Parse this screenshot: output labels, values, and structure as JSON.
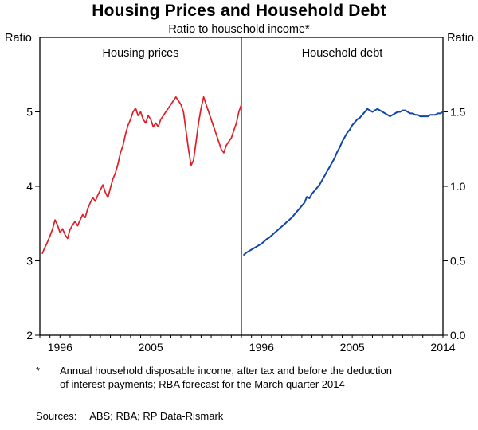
{
  "footnote": {
    "marker": "*",
    "text": "Annual household disposable income, after tax and before the deduction of interest payments; RBA forecast for the March quarter 2014"
  },
  "sources": {
    "label": "Sources:",
    "text": "ABS; RBA; RP Data-Rismark"
  },
  "chart_data": {
    "type": "line",
    "title": "Housing Prices and Household Debt",
    "subtitle": "Ratio to household income*",
    "left_axis": {
      "unit": "Ratio",
      "min": 2,
      "max": 6,
      "tick_values": [
        2,
        3,
        4,
        5
      ],
      "tick_labels": [
        "2",
        "3",
        "4",
        "5"
      ]
    },
    "right_axis": {
      "unit": "Ratio",
      "min": 0,
      "max": 2,
      "tick_values": [
        0,
        0.5,
        1,
        1.5
      ],
      "tick_labels": [
        "0.0",
        "0.5",
        "1.0",
        "1.5"
      ]
    },
    "x_axis": {
      "range": [
        1994,
        2014
      ],
      "minor_tick_every": 1
    },
    "grid": "off",
    "legend": "none",
    "panels": [
      {
        "label": "Housing prices",
        "axis": "left",
        "color": "#df1d24",
        "x_ticks_labeled": [
          1996,
          2005
        ],
        "series": {
          "name": "Housing prices (ratio to household income)",
          "x_start": 1994.25,
          "x_step": 0.25,
          "y": [
            3.1,
            3.18,
            3.25,
            3.33,
            3.42,
            3.55,
            3.48,
            3.38,
            3.43,
            3.35,
            3.3,
            3.42,
            3.48,
            3.53,
            3.47,
            3.55,
            3.62,
            3.58,
            3.7,
            3.78,
            3.85,
            3.8,
            3.88,
            3.95,
            4.02,
            3.92,
            3.85,
            3.98,
            4.1,
            4.18,
            4.3,
            4.45,
            4.55,
            4.7,
            4.82,
            4.9,
            5.0,
            5.05,
            4.95,
            5.0,
            4.9,
            4.85,
            4.95,
            4.9,
            4.8,
            4.85,
            4.8,
            4.9,
            4.95,
            5.0,
            5.05,
            5.1,
            5.15,
            5.2,
            5.15,
            5.1,
            5.0,
            4.75,
            4.5,
            4.28,
            4.35,
            4.6,
            4.85,
            5.05,
            5.2,
            5.1,
            5.0,
            4.9,
            4.8,
            4.7,
            4.6,
            4.5,
            4.45,
            4.55,
            4.6,
            4.65,
            4.75,
            4.85,
            5.0,
            5.1
          ]
        }
      },
      {
        "label": "Household debt",
        "axis": "right",
        "color": "#1245a8",
        "x_ticks_labeled": [
          1996,
          2005,
          2014
        ],
        "series": {
          "name": "Household debt (ratio to household income)",
          "x_start": 1994.25,
          "x_step": 0.25,
          "y": [
            0.54,
            0.555,
            0.565,
            0.575,
            0.585,
            0.595,
            0.605,
            0.615,
            0.63,
            0.645,
            0.655,
            0.67,
            0.685,
            0.7,
            0.715,
            0.73,
            0.745,
            0.76,
            0.775,
            0.79,
            0.81,
            0.83,
            0.85,
            0.87,
            0.89,
            0.93,
            0.92,
            0.95,
            0.97,
            0.99,
            1.01,
            1.04,
            1.07,
            1.1,
            1.13,
            1.16,
            1.19,
            1.23,
            1.26,
            1.3,
            1.33,
            1.36,
            1.38,
            1.41,
            1.43,
            1.45,
            1.46,
            1.48,
            1.5,
            1.52,
            1.51,
            1.5,
            1.51,
            1.52,
            1.51,
            1.5,
            1.49,
            1.48,
            1.47,
            1.48,
            1.49,
            1.5,
            1.5,
            1.51,
            1.51,
            1.5,
            1.49,
            1.49,
            1.48,
            1.48,
            1.47,
            1.47,
            1.47,
            1.47,
            1.48,
            1.48,
            1.48,
            1.49,
            1.49,
            1.5
          ]
        }
      }
    ]
  }
}
